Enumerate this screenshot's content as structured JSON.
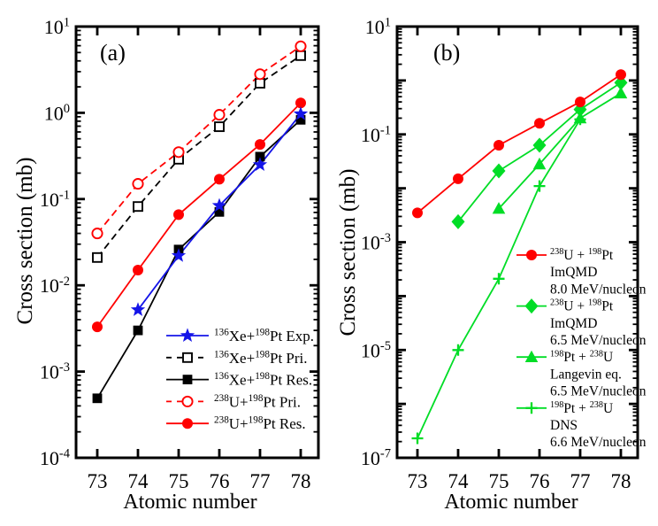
{
  "figure": {
    "background": "#ffffff",
    "accent_colors": {
      "red": "#ff0000",
      "blue": "#1414e8",
      "green": "#00dd26",
      "black": "#000000"
    }
  },
  "chart_data": [
    {
      "id": "a",
      "type": "line",
      "panel_label": "(a)",
      "xlabel": "Atomic number",
      "ylabel": "Cross section (mb)",
      "x_ticks": [
        73,
        74,
        75,
        76,
        77,
        78
      ],
      "x_tick_labels": [
        "73",
        "74",
        "75",
        "76",
        "77",
        "78"
      ],
      "ylog": true,
      "ylim": [
        0.0001,
        10
      ],
      "y_tick_exponents": [
        1,
        0,
        -1,
        -2,
        -3,
        -4
      ],
      "grid": false,
      "legend_position": "inside-lower-right",
      "series": [
        {
          "name": "xe136-pt198-exp",
          "legend": [
            "^{136}Xe+^{198}Pt Exp."
          ],
          "color": "#1414e8",
          "marker": "star",
          "line": "solid",
          "x": [
            74,
            75,
            76,
            77,
            78
          ],
          "y": [
            0.0052,
            0.022,
            0.084,
            0.25,
            0.97
          ]
        },
        {
          "name": "xe136-pt198-pri",
          "legend": [
            "^{136}Xe+^{198}Pt Pri."
          ],
          "color": "#000000",
          "marker": "square-open",
          "line": "dashed",
          "x": [
            73,
            74,
            75,
            76,
            77,
            78
          ],
          "y": [
            0.021,
            0.082,
            0.29,
            0.69,
            2.2,
            4.6
          ]
        },
        {
          "name": "xe136-pt198-res",
          "legend": [
            "^{136}Xe+^{198}Pt Res."
          ],
          "color": "#000000",
          "marker": "square",
          "line": "solid",
          "x": [
            73,
            74,
            75,
            76,
            77,
            78
          ],
          "y": [
            0.00049,
            0.003,
            0.026,
            0.071,
            0.31,
            0.83
          ]
        },
        {
          "name": "u238-pt198-pri",
          "legend": [
            "^{238}U+^{198}Pt Pri."
          ],
          "color": "#ff0000",
          "marker": "circle-open",
          "line": "dashed",
          "x": [
            73,
            74,
            75,
            76,
            77,
            78
          ],
          "y": [
            0.04,
            0.15,
            0.35,
            0.95,
            2.8,
            5.9
          ]
        },
        {
          "name": "u238-pt198-res",
          "legend": [
            "^{238}U+^{198}Pt Res."
          ],
          "color": "#ff0000",
          "marker": "circle",
          "line": "solid",
          "x": [
            73,
            74,
            75,
            76,
            77,
            78
          ],
          "y": [
            0.0033,
            0.015,
            0.066,
            0.17,
            0.43,
            1.3
          ]
        }
      ]
    },
    {
      "id": "b",
      "type": "line",
      "panel_label": "(b)",
      "xlabel": "Atomic number",
      "ylabel": "Cross section (mb)",
      "x_ticks": [
        73,
        74,
        75,
        76,
        77,
        78
      ],
      "x_tick_labels": [
        "73",
        "74",
        "75",
        "76",
        "77",
        "78"
      ],
      "ylog": true,
      "ylim": [
        1e-07,
        10
      ],
      "y_tick_exponents": [
        1,
        -1,
        -3,
        -5,
        -7
      ],
      "grid": false,
      "legend_position": "inside-lower-right",
      "series": [
        {
          "name": "u238-pt198-imqmd-8.0",
          "legend": [
            "^{238}U + ^{198}Pt",
            "ImQMD",
            "8.0 MeV/nucleon"
          ],
          "color": "#ff0000",
          "marker": "circle",
          "line": "solid",
          "x": [
            73,
            74,
            75,
            76,
            77,
            78
          ],
          "y": [
            0.0035,
            0.015,
            0.063,
            0.16,
            0.4,
            1.28
          ]
        },
        {
          "name": "u238-pt198-imqmd-6.5",
          "legend": [
            "^{238}U + ^{198}Pt",
            "ImQMD",
            "6.5 MeV/nucleon"
          ],
          "color": "#00dd26",
          "marker": "diamond",
          "line": "solid",
          "x": [
            74,
            75,
            76,
            77,
            78
          ],
          "y": [
            0.0024,
            0.021,
            0.063,
            0.29,
            0.91
          ]
        },
        {
          "name": "pt198-u238-langevin",
          "legend": [
            "^{198}Pt + ^{238}U",
            "Langevin eq.",
            "6.5 MeV/nucleon"
          ],
          "color": "#00dd26",
          "marker": "triangle",
          "line": "solid",
          "x": [
            75,
            76,
            77,
            78
          ],
          "y": [
            0.0042,
            0.028,
            0.2,
            0.58
          ]
        },
        {
          "name": "pt198-u238-dns",
          "legend": [
            "^{198}Pt + ^{238}U",
            "DNS",
            "6.6 MeV/nucleon"
          ],
          "color": "#00dd26",
          "marker": "plus",
          "line": "solid",
          "x": [
            73,
            74,
            75,
            76,
            77
          ],
          "y": [
            2.3e-07,
            1e-05,
            0.00021,
            0.011,
            0.19
          ]
        }
      ]
    }
  ]
}
